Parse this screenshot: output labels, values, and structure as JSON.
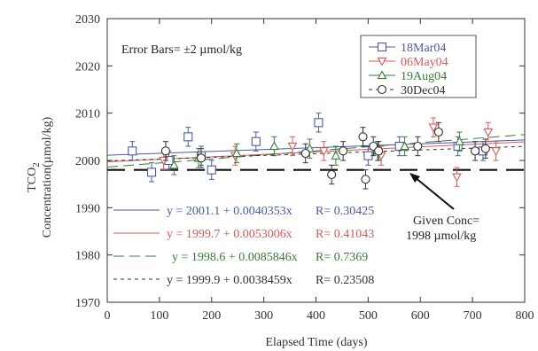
{
  "chart_data": {
    "type": "scatter",
    "xlabel": "Elapsed Time (days)",
    "ylabel_prefix": "TCO",
    "ylabel_sub": "2",
    "ylabel_line2": "Concentration(µmol/kg)",
    "xlim": [
      0,
      800
    ],
    "ylim": [
      1970,
      2030
    ],
    "x_ticks": [
      0,
      100,
      200,
      300,
      400,
      500,
      600,
      700,
      800
    ],
    "y_ticks": [
      1970,
      1980,
      1990,
      2000,
      2010,
      2020,
      2030
    ],
    "grid": false,
    "legend_position": "top-right",
    "error_bar_half": 2,
    "annotations": {
      "error_bars": "Error Bars= ±2 µmol/kg",
      "given_conc_line1": "Given Conc=",
      "given_conc_line2": "1998 µmol/kg",
      "given_value": 1998
    },
    "series": [
      {
        "name": "18Mar04",
        "color": "#4a5aa8",
        "marker": "square",
        "equation": "y = 2001.1 + 0.0040353x",
        "r_label": "R= 0.30425",
        "intercept": 2001.1,
        "slope": 0.0040353,
        "x": [
          48,
          85,
          118,
          155,
          180,
          200,
          285,
          405,
          500,
          560,
          672,
          720
        ],
        "y": [
          2002,
          1997.5,
          2000,
          2005,
          2001,
          1998,
          2004,
          2008,
          2001,
          2003,
          2003,
          2002
        ]
      },
      {
        "name": "06May04",
        "color": "#d45a5a",
        "marker": "triangle-down",
        "equation": "y = 1999.7 + 0.0053006x",
        "r_label": "R= 0.41043",
        "intercept": 1999.7,
        "slope": 0.0053006,
        "x": [
          108,
          245,
          355,
          415,
          525,
          625,
          670,
          730,
          745
        ],
        "y": [
          2000,
          2001,
          2003,
          2002,
          2001,
          2007,
          1996.5,
          2006,
          2002
        ]
      },
      {
        "name": "19Aug04",
        "color": "#3a7a3a",
        "marker": "triangle-up",
        "equation": "y = 1998.6 + 0.0085846x",
        "r_label": "R= 0.7369",
        "intercept": 1998.6,
        "slope": 0.0085846,
        "x": [
          128,
          175,
          248,
          320,
          388,
          438,
          518,
          570,
          675
        ],
        "y": [
          1999,
          2000.5,
          2001.5,
          2003,
          2002.5,
          2001,
          2002,
          2003,
          2004
        ]
      },
      {
        "name": "30Dec04",
        "color": "#333333",
        "marker": "circle",
        "equation": "y = 1999.9 + 0.0038459x",
        "r_label": "R= 0.23508",
        "intercept": 1999.9,
        "slope": 0.0038459,
        "x": [
          112,
          180,
          380,
          430,
          452,
          490,
          495,
          510,
          520,
          595,
          635,
          705,
          725
        ],
        "y": [
          2002,
          2000.5,
          2001.5,
          1997,
          2002,
          2005,
          1996,
          2003,
          2002,
          2003,
          2006,
          2002,
          2002.5
        ]
      }
    ]
  }
}
